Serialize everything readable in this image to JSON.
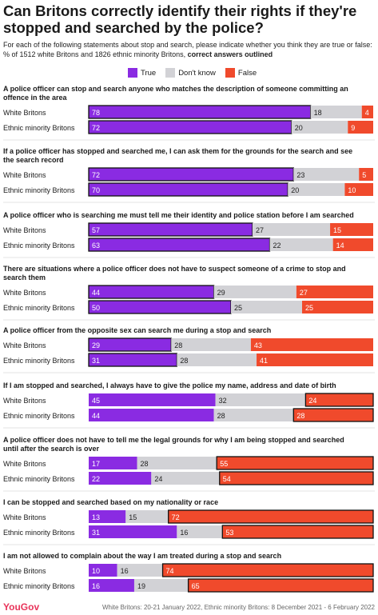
{
  "title": "Can Britons correctly identify their rights if they're stopped and searched by the police?",
  "subtitle": "For each of the following statements about stop and search, please indicate whether you think they are true or false: % of 1512 white Britons and 1826 ethnic minority Britons,",
  "subtitle_bold": "correct answers outlined",
  "legend": [
    "True",
    "Don't know",
    "False"
  ],
  "colors": {
    "True": "#8a2be2",
    "Dont_know": "#d2d2d6",
    "False": "#f04a2c"
  },
  "footer": {
    "logo": "YouGov",
    "note": "White Britons: 20-21 January 2022, Ethnic minority Britons: 8 December 2021 - 6 February 2022"
  },
  "chart_data": {
    "type": "bar",
    "stacked": true,
    "orientation": "horizontal",
    "series_order": [
      "True",
      "Don't know",
      "False"
    ],
    "questions": [
      {
        "text_lines": [
          "A police officer can stop and search anyone who matches the description of someone committing an",
          "offence in the area"
        ],
        "correct": "True",
        "rows": [
          {
            "label": "White Britons",
            "values": [
              78,
              18,
              4
            ]
          },
          {
            "label": "Ethnic minority Britons",
            "values": [
              72,
              20,
              9
            ]
          }
        ]
      },
      {
        "text_lines": [
          "If a police officer has stopped and searched me, I can ask them for the grounds for the search and see",
          "the search record"
        ],
        "correct": "True",
        "rows": [
          {
            "label": "White Britons",
            "values": [
              72,
              23,
              5
            ]
          },
          {
            "label": "Ethnic minority Britons",
            "values": [
              70,
              20,
              10
            ]
          }
        ]
      },
      {
        "text_lines": [
          "A police officer who is searching me must tell me their identity and police station before I am searched"
        ],
        "correct": "True",
        "rows": [
          {
            "label": "White Britons",
            "values": [
              57,
              27,
              15
            ]
          },
          {
            "label": "Ethnic minority Britons",
            "values": [
              63,
              22,
              14
            ]
          }
        ]
      },
      {
        "text_lines": [
          "There are situations where a police officer does not have to suspect someone of a crime to stop and",
          "search them"
        ],
        "correct": "True",
        "rows": [
          {
            "label": "White Britons",
            "values": [
              44,
              29,
              27
            ]
          },
          {
            "label": "Ethnic minority Britons",
            "values": [
              50,
              25,
              25
            ]
          }
        ]
      },
      {
        "text_lines": [
          "A police officer from the opposite sex can search me during a stop and search"
        ],
        "correct": "True",
        "rows": [
          {
            "label": "White Britons",
            "values": [
              29,
              28,
              43
            ]
          },
          {
            "label": "Ethnic minority Britons",
            "values": [
              31,
              28,
              41
            ]
          }
        ]
      },
      {
        "text_lines": [
          "If I am stopped and searched, I always have to give the police my name, address and date of birth"
        ],
        "correct": "False",
        "rows": [
          {
            "label": "White Britons",
            "values": [
              45,
              32,
              24
            ]
          },
          {
            "label": "Ethnic minority Britons",
            "values": [
              44,
              28,
              28
            ]
          }
        ]
      },
      {
        "text_lines": [
          "A police officer does not have to tell me the legal grounds for why I am being stopped and searched",
          "until after the search is over"
        ],
        "correct": "False",
        "rows": [
          {
            "label": "White Britons",
            "values": [
              17,
              28,
              55
            ]
          },
          {
            "label": "Ethnic minority Britons",
            "values": [
              22,
              24,
              54
            ]
          }
        ]
      },
      {
        "text_lines": [
          "I can be stopped and searched based on my nationality or race"
        ],
        "correct": "False",
        "rows": [
          {
            "label": "White Britons",
            "values": [
              13,
              15,
              72
            ]
          },
          {
            "label": "Ethnic minority Britons",
            "values": [
              31,
              16,
              53
            ]
          }
        ]
      },
      {
        "text_lines": [
          "I am not allowed to complain about the way I am treated during a stop and search"
        ],
        "correct": "False",
        "rows": [
          {
            "label": "White Britons",
            "values": [
              10,
              16,
              74
            ]
          },
          {
            "label": "Ethnic minority Britons",
            "values": [
              16,
              19,
              65
            ]
          }
        ]
      }
    ]
  }
}
